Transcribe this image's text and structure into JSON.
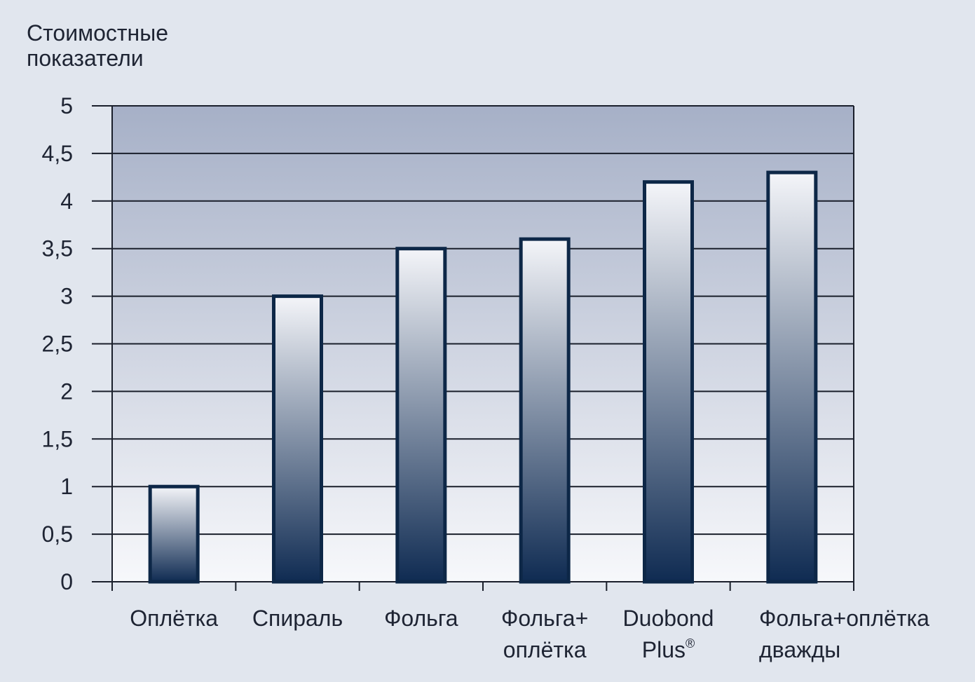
{
  "chart_data": {
    "type": "bar",
    "ylabel": [
      "Стоимостные",
      "показатели"
    ],
    "ylim": [
      0,
      5
    ],
    "yticks": [
      "0",
      "0,5",
      "1",
      "1,5",
      "2",
      "2,5",
      "3",
      "3,5",
      "4",
      "4,5",
      "5"
    ],
    "grid": true,
    "categories": [
      {
        "lines": [
          "Оплётка"
        ]
      },
      {
        "lines": [
          "Спираль"
        ]
      },
      {
        "lines": [
          "Фольга"
        ]
      },
      {
        "lines": [
          "Фольга+",
          "оплётка"
        ]
      },
      {
        "lines": [
          "Duobond",
          "Plus"
        ],
        "superscript": "®"
      },
      {
        "lines": [
          "Фольга+оплётка",
          "дважды"
        ]
      }
    ],
    "values": [
      1,
      3,
      3.5,
      3.6,
      4.2,
      4.3
    ],
    "colors": {
      "page_background": "#e1e6ee",
      "plot_top": "#a6b0c7",
      "plot_bottom": "#f7f8fb",
      "bar_top": "#f4f5f9",
      "bar_bottom": "#0f2b52",
      "bar_border": "#0d2747",
      "grid": "#1a1f2b"
    }
  }
}
